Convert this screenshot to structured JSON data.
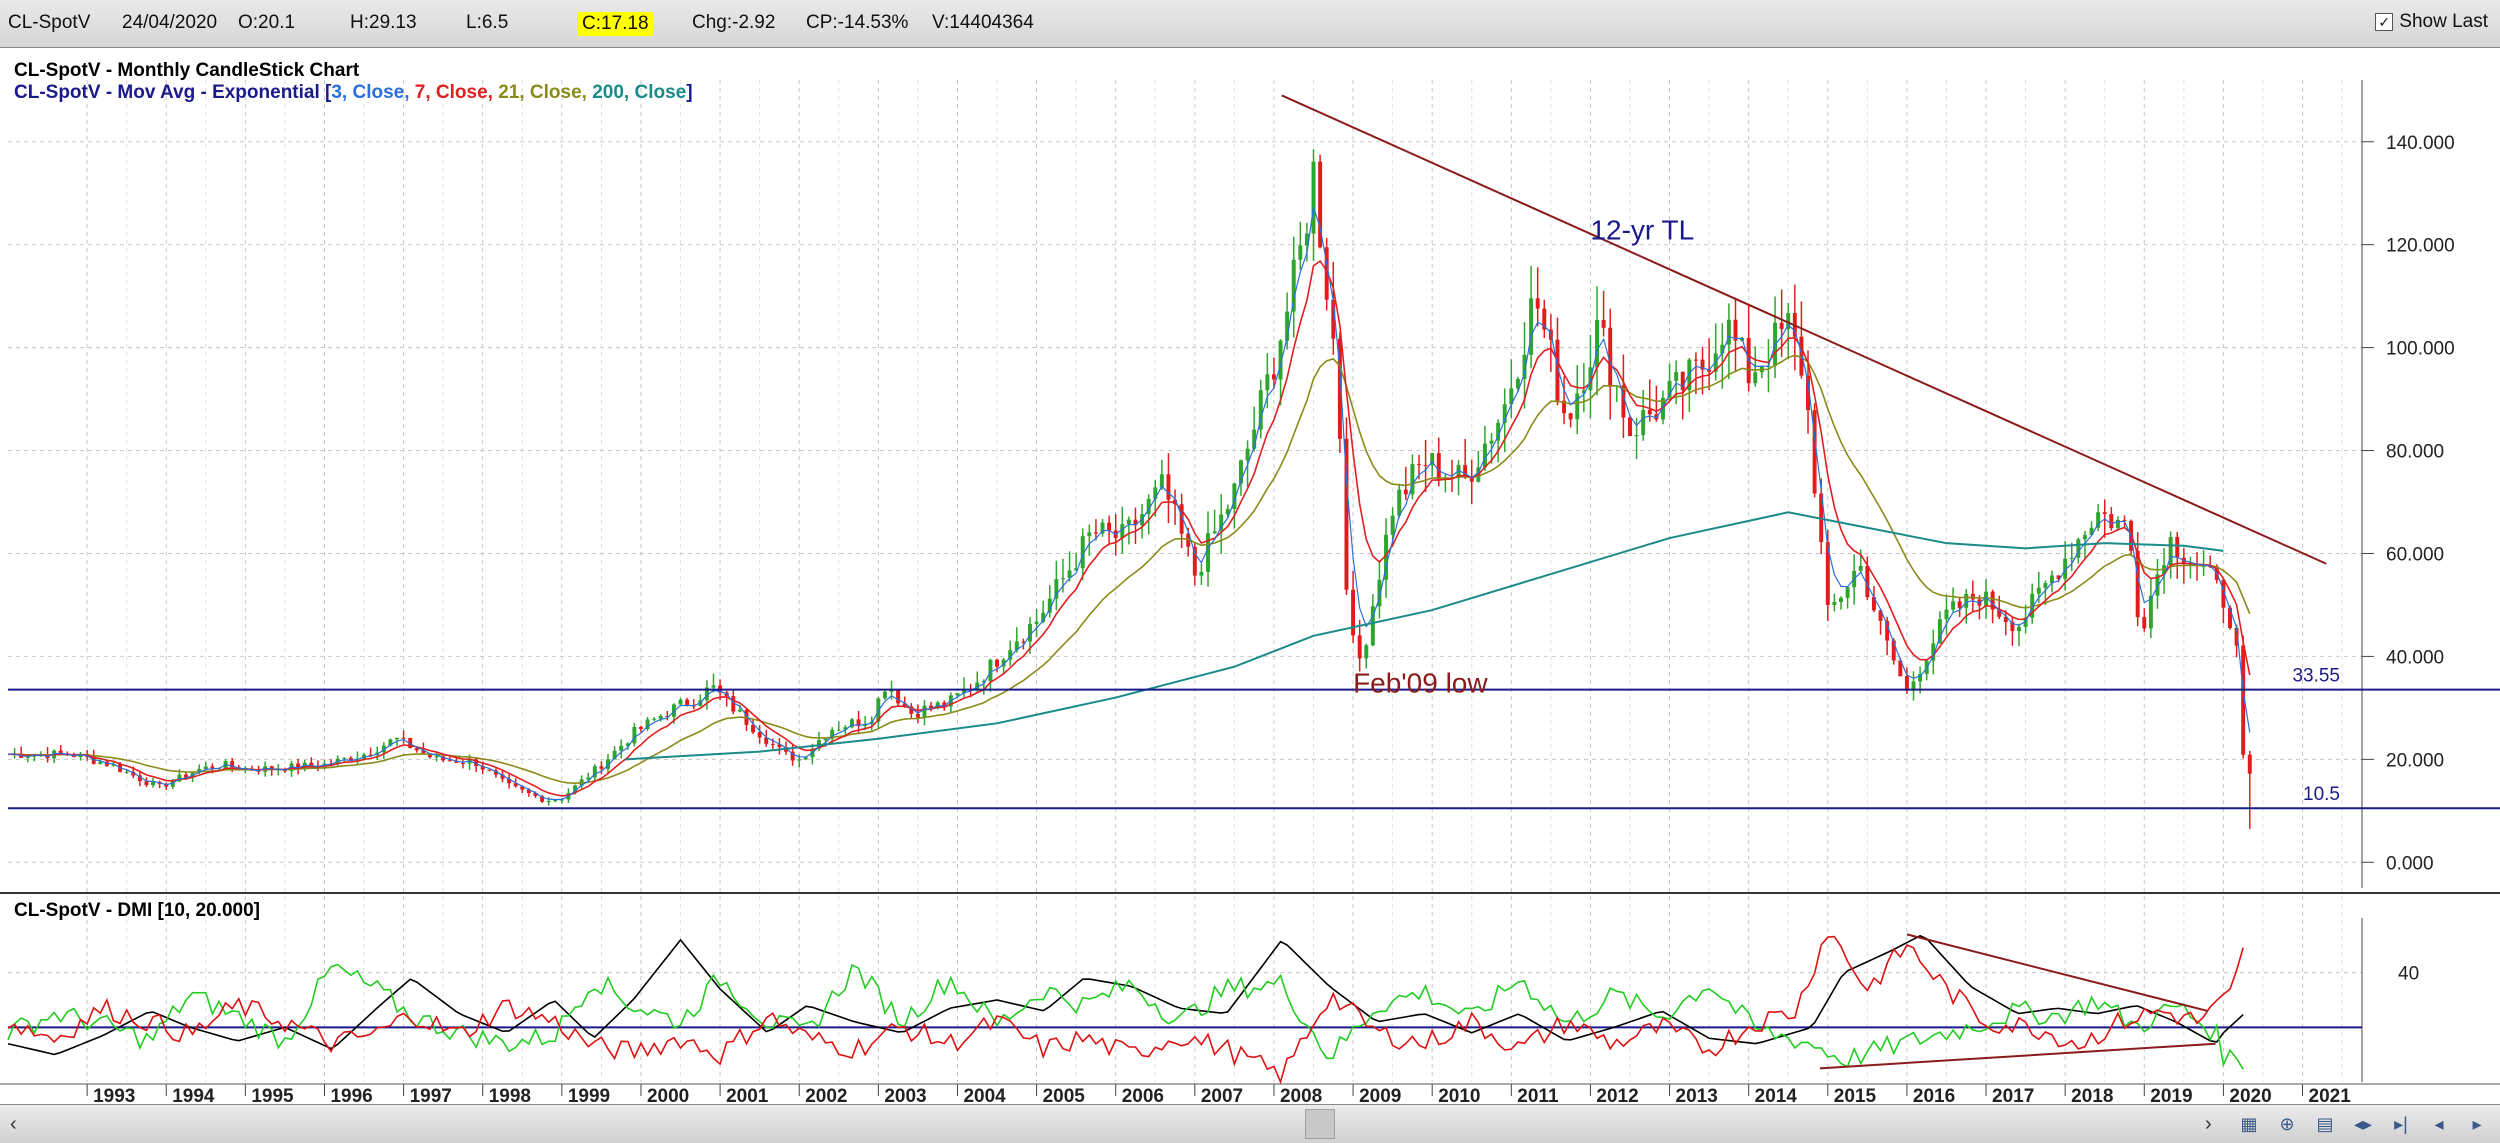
{
  "header": {
    "symbol": "CL-SpotV",
    "date": "24/04/2020",
    "open": "O:20.1",
    "high": "H:29.13",
    "low": "L:6.5",
    "close": "C:17.18",
    "change": "Chg:-2.92",
    "change_pct": "CP:-14.53%",
    "volume": "V:14404364",
    "show_last_label": "Show Last",
    "show_last_checked": true
  },
  "colors": {
    "ema3": "#2a6fdb",
    "ema7": "#e02020",
    "ema21": "#8b8b1a",
    "ema200": "#1a8a8a",
    "trendline": "#8b1a1a",
    "hline": "#1a1a8a",
    "bull": "#2ea52e",
    "bear": "#e01c1c",
    "dmi_adx": "#000000",
    "dmi_plus": "#22cc22",
    "dmi_minus": "#dd1111"
  },
  "chart_data": [
    {
      "type": "candlestick",
      "title": "CL-SpotV - Monthly CandleStick Chart",
      "indicator_title": {
        "prefix": "CL-SpotV - Mov Avg - Exponential [",
        "p1": "3, Close,",
        "p2": " 7, Close,",
        "p3": " 21, Close,",
        "p4": " 200, Close",
        "suffix": "]"
      },
      "x_tick_labels": [
        "1993",
        "1994",
        "1995",
        "1996",
        "1997",
        "1998",
        "1999",
        "2000",
        "2001",
        "2002",
        "2003",
        "2004",
        "2005",
        "2006",
        "2007",
        "2008",
        "2009",
        "2010",
        "2011",
        "2012",
        "2013",
        "2014",
        "2015",
        "2016",
        "2017",
        "2018",
        "2019",
        "2020",
        "2021"
      ],
      "x_range": [
        1992.0,
        2021.6
      ],
      "y_range": [
        -5,
        152
      ],
      "y_ticks": [
        {
          "value": 0,
          "label": "0.000"
        },
        {
          "value": 20,
          "label": "20.000"
        },
        {
          "value": 40,
          "label": "40.000"
        },
        {
          "value": 60,
          "label": "60.000"
        },
        {
          "value": 80,
          "label": "80.000"
        },
        {
          "value": 100,
          "label": "100.000"
        },
        {
          "value": 120,
          "label": "120.000"
        },
        {
          "value": 140,
          "label": "140.000"
        }
      ],
      "y_axis_side": "right",
      "grid": true,
      "price_path": [
        [
          1992.0,
          21
        ],
        [
          1992.8,
          21
        ],
        [
          1993.3,
          19
        ],
        [
          1993.9,
          14.5
        ],
        [
          1994.4,
          18
        ],
        [
          1994.7,
          19
        ],
        [
          1995.0,
          18
        ],
        [
          1995.6,
          18.5
        ],
        [
          1996.0,
          19
        ],
        [
          1996.5,
          21
        ],
        [
          1996.9,
          24
        ],
        [
          1997.4,
          20
        ],
        [
          1997.9,
          19.5
        ],
        [
          1998.3,
          15
        ],
        [
          1998.8,
          12
        ],
        [
          1999.0,
          12.5
        ],
        [
          1999.5,
          19
        ],
        [
          1999.9,
          25
        ],
        [
          2000.3,
          29
        ],
        [
          2000.7,
          32
        ],
        [
          2000.9,
          34
        ],
        [
          2001.3,
          28
        ],
        [
          2001.8,
          21
        ],
        [
          2002.0,
          20
        ],
        [
          2002.4,
          26
        ],
        [
          2002.9,
          28
        ],
        [
          2003.1,
          35
        ],
        [
          2003.4,
          29
        ],
        [
          2003.9,
          31
        ],
        [
          2004.3,
          36
        ],
        [
          2004.7,
          43
        ],
        [
          2005.0,
          47
        ],
        [
          2005.7,
          64
        ],
        [
          2006.1,
          63
        ],
        [
          2006.6,
          73
        ],
        [
          2007.0,
          56
        ],
        [
          2007.5,
          72
        ],
        [
          2007.9,
          92
        ],
        [
          2008.3,
          115
        ],
        [
          2008.5,
          134
        ],
        [
          2008.8,
          95
        ],
        [
          2008.95,
          44
        ],
        [
          2009.1,
          39
        ],
        [
          2009.5,
          69
        ],
        [
          2009.9,
          78
        ],
        [
          2010.4,
          74
        ],
        [
          2010.9,
          88
        ],
        [
          2011.3,
          110
        ],
        [
          2011.7,
          86
        ],
        [
          2012.1,
          104
        ],
        [
          2012.5,
          84
        ],
        [
          2012.9,
          89
        ],
        [
          2013.4,
          96
        ],
        [
          2013.7,
          105
        ],
        [
          2014.0,
          95
        ],
        [
          2014.5,
          104
        ],
        [
          2014.7,
          95
        ],
        [
          2015.0,
          48
        ],
        [
          2015.4,
          58
        ],
        [
          2015.7,
          44
        ],
        [
          2016.0,
          33
        ],
        [
          2016.5,
          48
        ],
        [
          2016.9,
          52
        ],
        [
          2017.4,
          46
        ],
        [
          2017.9,
          57
        ],
        [
          2018.4,
          68
        ],
        [
          2018.8,
          65
        ],
        [
          2018.95,
          45
        ],
        [
          2019.3,
          63
        ],
        [
          2019.8,
          56
        ],
        [
          2020.0,
          51
        ],
        [
          2020.15,
          45
        ],
        [
          2020.25,
          20
        ],
        [
          2020.35,
          17.2
        ]
      ],
      "low_wick_last": 6.5,
      "ema200_path": [
        [
          1999.8,
          20
        ],
        [
          2001.5,
          21.5
        ],
        [
          2003.0,
          24
        ],
        [
          2004.5,
          27
        ],
        [
          2006.0,
          32
        ],
        [
          2007.5,
          38
        ],
        [
          2008.5,
          44
        ],
        [
          2010.0,
          49
        ],
        [
          2011.5,
          56
        ],
        [
          2013.0,
          63
        ],
        [
          2014.5,
          68
        ],
        [
          2015.5,
          65
        ],
        [
          2016.5,
          62
        ],
        [
          2017.5,
          61
        ],
        [
          2018.5,
          62
        ],
        [
          2019.5,
          61.5
        ],
        [
          2020.0,
          60.5
        ]
      ],
      "trendlines": [
        {
          "from": [
            2008.1,
            149
          ],
          "to": [
            2021.3,
            58
          ]
        }
      ],
      "horizontal_lines": [
        {
          "value": 33.55,
          "label": "33.55"
        },
        {
          "value": 10.5,
          "label": "10.5"
        }
      ],
      "annotations": [
        {
          "text": "12-yr TL",
          "x": 2012.0,
          "y": 121
        },
        {
          "text": "Feb'09 low",
          "x": 2009.0,
          "y": 33
        }
      ]
    },
    {
      "type": "line",
      "title": "CL-SpotV - DMI [10, 20.000]",
      "y_range": [
        0,
        60
      ],
      "y_ticks": [
        {
          "value": 40,
          "label": "40"
        }
      ],
      "reference_line": 20,
      "series": [
        {
          "key": "adx",
          "points": [
            [
              1992.0,
              14
            ],
            [
              1992.6,
              10
            ],
            [
              1993.2,
              17
            ],
            [
              1993.8,
              26
            ],
            [
              1994.3,
              20
            ],
            [
              1994.9,
              15
            ],
            [
              1995.5,
              20
            ],
            [
              1996.1,
              12
            ],
            [
              1996.7,
              28
            ],
            [
              1997.1,
              38
            ],
            [
              1997.7,
              25
            ],
            [
              1998.3,
              18
            ],
            [
              1998.9,
              30
            ],
            [
              1999.4,
              16
            ],
            [
              1999.9,
              30
            ],
            [
              2000.5,
              52
            ],
            [
              2001.0,
              34
            ],
            [
              2001.6,
              18
            ],
            [
              2002.1,
              28
            ],
            [
              2002.7,
              22
            ],
            [
              2003.3,
              18
            ],
            [
              2003.9,
              27
            ],
            [
              2004.5,
              30
            ],
            [
              2005.1,
              26
            ],
            [
              2005.6,
              38
            ],
            [
              2006.2,
              35
            ],
            [
              2006.8,
              27
            ],
            [
              2007.4,
              25
            ],
            [
              2008.1,
              52
            ],
            [
              2008.7,
              35
            ],
            [
              2009.3,
              22
            ],
            [
              2009.9,
              25
            ],
            [
              2010.5,
              18
            ],
            [
              2011.1,
              25
            ],
            [
              2011.7,
              15
            ],
            [
              2012.3,
              20
            ],
            [
              2012.9,
              26
            ],
            [
              2013.5,
              16
            ],
            [
              2014.1,
              14
            ],
            [
              2014.8,
              20
            ],
            [
              2015.2,
              40
            ],
            [
              2015.8,
              48
            ],
            [
              2016.2,
              54
            ],
            [
              2016.8,
              35
            ],
            [
              2017.4,
              25
            ],
            [
              2017.9,
              27
            ],
            [
              2018.4,
              25
            ],
            [
              2018.9,
              28
            ],
            [
              2019.4,
              22
            ],
            [
              2019.9,
              14
            ],
            [
              2020.0,
              18
            ],
            [
              2020.3,
              26
            ]
          ]
        },
        {
          "key": "plus_di",
          "points": [
            [
              1992.0,
              18
            ],
            [
              1992.6,
              25
            ],
            [
              1993.2,
              21
            ],
            [
              1993.8,
              15
            ],
            [
              1994.3,
              32
            ],
            [
              1994.9,
              24
            ],
            [
              1995.5,
              15
            ],
            [
              1996.1,
              42
            ],
            [
              1996.7,
              33
            ],
            [
              1997.1,
              24
            ],
            [
              1997.7,
              18
            ],
            [
              1998.3,
              14
            ],
            [
              1998.9,
              17
            ],
            [
              1999.4,
              38
            ],
            [
              1999.9,
              28
            ],
            [
              2000.5,
              22
            ],
            [
              2001.0,
              38
            ],
            [
              2001.6,
              22
            ],
            [
              2002.1,
              18
            ],
            [
              2002.7,
              42
            ],
            [
              2003.3,
              22
            ],
            [
              2003.9,
              38
            ],
            [
              2004.5,
              21
            ],
            [
              2005.1,
              34
            ],
            [
              2005.6,
              28
            ],
            [
              2006.2,
              36
            ],
            [
              2006.8,
              22
            ],
            [
              2007.4,
              34
            ],
            [
              2008.1,
              36
            ],
            [
              2008.7,
              9
            ],
            [
              2009.3,
              28
            ],
            [
              2009.9,
              33
            ],
            [
              2010.5,
              23
            ],
            [
              2011.1,
              38
            ],
            [
              2011.7,
              21
            ],
            [
              2012.3,
              32
            ],
            [
              2012.9,
              24
            ],
            [
              2013.5,
              36
            ],
            [
              2014.1,
              19
            ],
            [
              2014.8,
              14
            ],
            [
              2015.2,
              8
            ],
            [
              2015.8,
              13
            ],
            [
              2016.2,
              16
            ],
            [
              2016.8,
              20
            ],
            [
              2017.4,
              26
            ],
            [
              2017.9,
              24
            ],
            [
              2018.4,
              30
            ],
            [
              2018.9,
              20
            ],
            [
              2019.4,
              28
            ],
            [
              2019.9,
              18
            ],
            [
              2020.0,
              10
            ],
            [
              2020.3,
              7
            ]
          ]
        },
        {
          "key": "minus_di",
          "points": [
            [
              1992.0,
              22
            ],
            [
              1992.6,
              16
            ],
            [
              1993.2,
              27
            ],
            [
              1993.8,
              22
            ],
            [
              1994.3,
              17
            ],
            [
              1994.9,
              28
            ],
            [
              1995.5,
              22
            ],
            [
              1996.1,
              14
            ],
            [
              1996.7,
              18
            ],
            [
              1997.1,
              25
            ],
            [
              1997.7,
              17
            ],
            [
              1998.3,
              28
            ],
            [
              1998.9,
              22
            ],
            [
              1999.4,
              13
            ],
            [
              1999.9,
              11
            ],
            [
              2000.5,
              16
            ],
            [
              2001.0,
              10
            ],
            [
              2001.6,
              24
            ],
            [
              2002.1,
              16
            ],
            [
              2002.7,
              12
            ],
            [
              2003.3,
              20
            ],
            [
              2003.9,
              14
            ],
            [
              2004.5,
              22
            ],
            [
              2005.1,
              12
            ],
            [
              2005.6,
              16
            ],
            [
              2006.2,
              10
            ],
            [
              2006.8,
              17
            ],
            [
              2007.4,
              12
            ],
            [
              2008.1,
              2
            ],
            [
              2008.7,
              32
            ],
            [
              2009.3,
              18
            ],
            [
              2009.9,
              14
            ],
            [
              2010.5,
              22
            ],
            [
              2011.1,
              12
            ],
            [
              2011.7,
              22
            ],
            [
              2012.3,
              14
            ],
            [
              2012.9,
              20
            ],
            [
              2013.5,
              12
            ],
            [
              2014.1,
              22
            ],
            [
              2014.6,
              26
            ],
            [
              2015.0,
              56
            ],
            [
              2015.5,
              34
            ],
            [
              2016.0,
              50
            ],
            [
              2016.5,
              34
            ],
            [
              2017.0,
              22
            ],
            [
              2017.6,
              20
            ],
            [
              2018.2,
              14
            ],
            [
              2018.7,
              22
            ],
            [
              2019.2,
              26
            ],
            [
              2019.7,
              22
            ],
            [
              2020.1,
              32
            ],
            [
              2020.3,
              52
            ]
          ]
        }
      ],
      "trendlines": [
        {
          "from": [
            2016.0,
            54
          ],
          "to": [
            2019.8,
            26
          ]
        },
        {
          "from": [
            2014.9,
            5
          ],
          "to": [
            2019.9,
            14
          ]
        }
      ]
    }
  ]
}
